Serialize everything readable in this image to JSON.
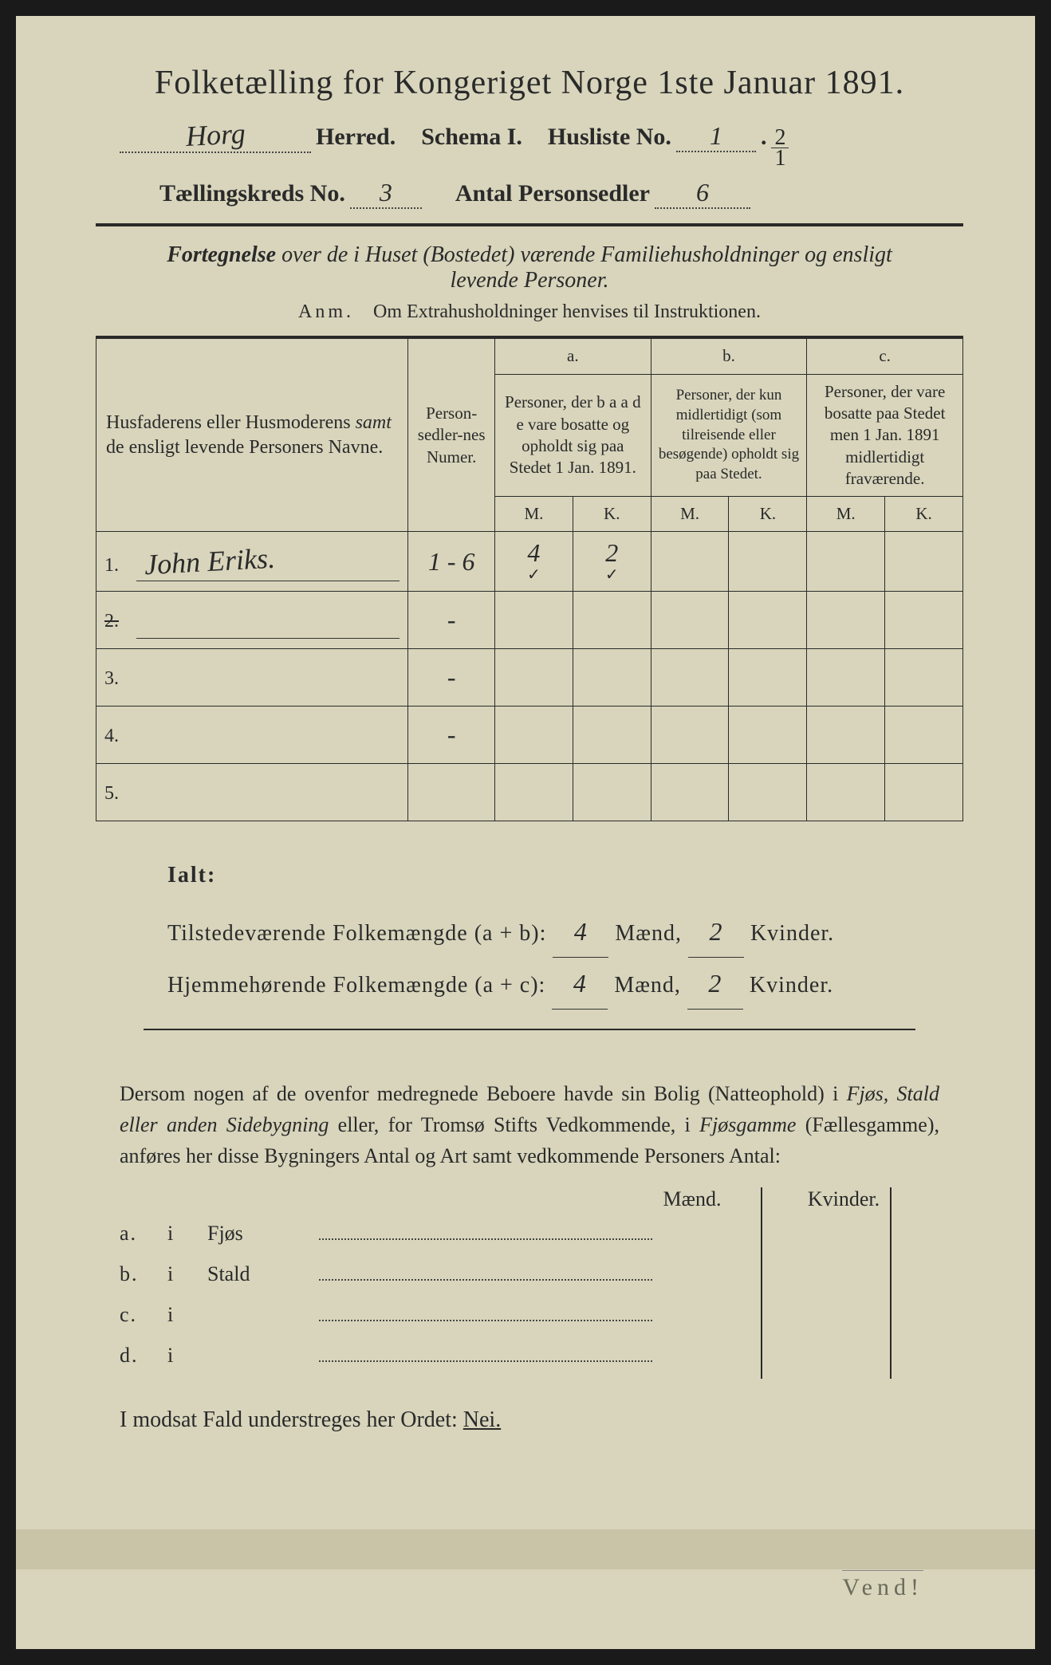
{
  "header": {
    "title": "Folketælling for Kongeriget Norge 1ste Januar 1891.",
    "herred_value": "Horg",
    "herred_label": "Herred.",
    "schema_label": "Schema I.",
    "husliste_label": "Husliste No.",
    "husliste_value": "1",
    "fraction_num": "2",
    "fraction_den": "1",
    "kreds_label": "Tællingskreds No.",
    "kreds_value": "3",
    "antal_label": "Antal Personsedler",
    "antal_value": "6"
  },
  "subtitle": "Fortegnelse over de i Huset (Bostedet) værende Familiehusholdninger og ensligt levende Personer.",
  "anm": {
    "label": "Anm.",
    "text": "Om Extrahusholdninger henvises til Instruktionen."
  },
  "table": {
    "col_name": "Husfaderens eller Husmoderens samt de ensligt levende Personers Navne.",
    "col_num": "Person-sedler-nes Numer.",
    "col_a_label": "a.",
    "col_a": "Personer, der baade vare bosatte og opholdt sig paa Stedet 1 Jan. 1891.",
    "col_b_label": "b.",
    "col_b": "Personer, der kun midlertidigt (som tilreisende eller besøgende) opholdt sig paa Stedet.",
    "col_c_label": "c.",
    "col_c": "Personer, der vare bosatte paa Stedet men 1 Jan. 1891 midlertidigt fraværende.",
    "m": "M.",
    "k": "K.",
    "rows": [
      {
        "n": "1.",
        "name": "John Eriks.",
        "num": "1 - 6",
        "am": "4",
        "ak": "2",
        "bm": "",
        "bk": "",
        "cm": "",
        "ck": "",
        "check": true
      },
      {
        "n": "2.",
        "name": "",
        "num": "-",
        "am": "",
        "ak": "",
        "bm": "",
        "bk": "",
        "cm": "",
        "ck": "",
        "struck": true
      },
      {
        "n": "3.",
        "name": "",
        "num": "-",
        "am": "",
        "ak": "",
        "bm": "",
        "bk": "",
        "cm": "",
        "ck": ""
      },
      {
        "n": "4.",
        "name": "",
        "num": "-",
        "am": "",
        "ak": "",
        "bm": "",
        "bk": "",
        "cm": "",
        "ck": ""
      },
      {
        "n": "5.",
        "name": "",
        "num": "",
        "am": "",
        "ak": "",
        "bm": "",
        "bk": "",
        "cm": "",
        "ck": ""
      }
    ]
  },
  "totals": {
    "ialt": "Ialt:",
    "line1_label": "Tilstedeværende Folkemængde (a + b):",
    "line2_label": "Hjemmehørende Folkemængde (a + c):",
    "maend": "Mænd,",
    "kvinder": "Kvinder.",
    "v1m": "4",
    "v1k": "2",
    "v2m": "4",
    "v2k": "2"
  },
  "para": "Dersom nogen af de ovenfor medregnede Beboere havde sin Bolig (Natteophold) i Fjøs, Stald eller anden Sidebygning eller, for Tromsø Stifts Vedkommende, i Fjøsgamme (Fællesgamme), anføres her disse Bygningers Antal og Art samt vedkommende Personers Antal:",
  "buildings": {
    "maend": "Mænd.",
    "kvinder": "Kvinder.",
    "rows": [
      {
        "l": "a.",
        "i": "i",
        "label": "Fjøs"
      },
      {
        "l": "b.",
        "i": "i",
        "label": "Stald"
      },
      {
        "l": "c.",
        "i": "i",
        "label": ""
      },
      {
        "l": "d.",
        "i": "i",
        "label": ""
      }
    ]
  },
  "nei": {
    "text": "I modsat Fald understreges her Ordet: ",
    "word": "Nei."
  },
  "vend": "Vend!"
}
